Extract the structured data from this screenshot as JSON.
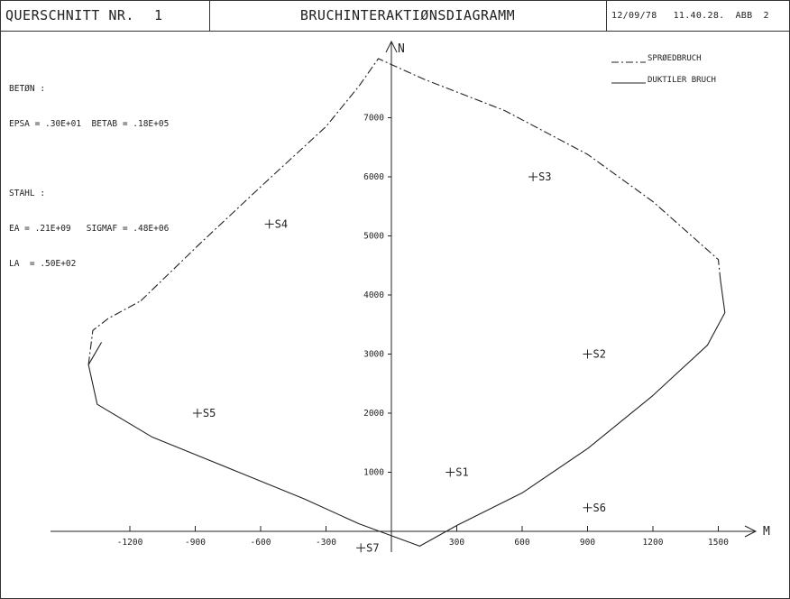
{
  "header": {
    "section_label": "QUERSCHNITT NR.",
    "section_number": "1",
    "title": "BRUCHINTERAKTIØNSDIAGRAMM",
    "date": "12/09/78",
    "time": "11.40.28.",
    "figure_ref": "ABB",
    "figure_number": "2"
  },
  "parameters": {
    "concrete_heading": "BETØN :",
    "concrete_values": "EPSA = .30E+01  BETAB = .18E+05",
    "steel_heading": "STAHL :",
    "steel_values_1": "EA = .21E+09   SIGMAF = .48E+06",
    "steel_values_2": "LA  = .50E+02"
  },
  "legend": {
    "brittle_label": "SPRØEDBRUCH",
    "ductile_label": "DUKTILER BRUCH"
  },
  "chart_data": {
    "type": "line",
    "title": "BRUCHINTERAKTIØNSDIAGRAMM",
    "xlabel": "M",
    "ylabel": "N",
    "xlim": [
      -1550,
      1680
    ],
    "ylim": [
      -350,
      8400
    ],
    "x_ticks": [
      -1200,
      -900,
      -600,
      -300,
      300,
      600,
      900,
      1200,
      1500
    ],
    "y_ticks": [
      1000,
      2000,
      3000,
      4000,
      5000,
      6000,
      7000
    ],
    "grid": false,
    "legend_position": "top-right",
    "series": [
      {
        "name": "SPRØEDBRUCH",
        "style": "dash-dot",
        "points": [
          [
            -1150,
            3900
          ],
          [
            -870,
            4900
          ],
          [
            -580,
            5900
          ],
          [
            -300,
            6850
          ],
          [
            -150,
            7530
          ],
          [
            -60,
            8000
          ],
          [
            150,
            7650
          ],
          [
            520,
            7120
          ],
          [
            900,
            6380
          ],
          [
            1200,
            5580
          ],
          [
            1500,
            4600
          ],
          [
            1510,
            4250
          ]
        ]
      },
      {
        "name": "DUKTILER BRUCH",
        "style": "solid",
        "points": [
          [
            -1330,
            3200
          ],
          [
            -1390,
            2820
          ],
          [
            -1350,
            2150
          ],
          [
            -1100,
            1600
          ],
          [
            -700,
            1000
          ],
          [
            -400,
            550
          ],
          [
            -150,
            130
          ],
          [
            130,
            -250
          ],
          [
            300,
            100
          ],
          [
            600,
            650
          ],
          [
            900,
            1400
          ],
          [
            1200,
            2300
          ],
          [
            1450,
            3150
          ],
          [
            1530,
            3700
          ],
          [
            1510,
            4250
          ]
        ]
      },
      {
        "name": "",
        "style": "dash-dot",
        "points": [
          [
            -1390,
            2820
          ],
          [
            -1370,
            3400
          ],
          [
            -1300,
            3600
          ],
          [
            -1150,
            3900
          ]
        ]
      }
    ],
    "points": [
      {
        "label": "S1",
        "x": 270,
        "y": 1000
      },
      {
        "label": "S2",
        "x": 900,
        "y": 3000
      },
      {
        "label": "S3",
        "x": 650,
        "y": 6000
      },
      {
        "label": "S4",
        "x": -560,
        "y": 5200
      },
      {
        "label": "S5",
        "x": -890,
        "y": 2000
      },
      {
        "label": "S6",
        "x": 900,
        "y": 400
      },
      {
        "label": "S7",
        "x": -140,
        "y": -280
      }
    ]
  }
}
